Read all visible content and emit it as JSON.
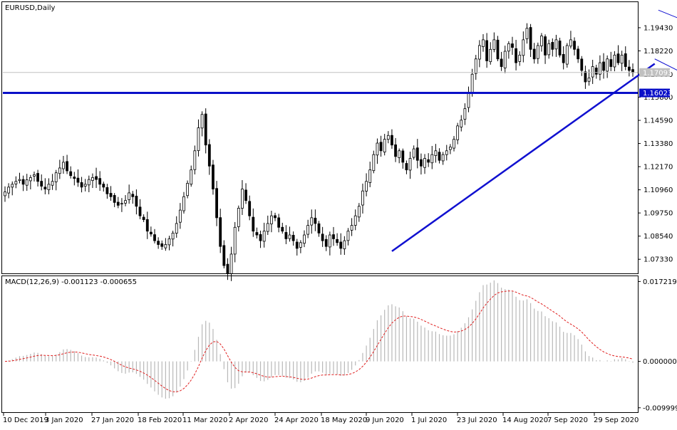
{
  "chart_data": [
    {
      "type": "candlestick",
      "title": "EURUSD,Daily",
      "ylim": [
        1.0663,
        1.2073
      ],
      "y_ticks": [
        "1.19430",
        "1.18220",
        "1.17000",
        "1.15800",
        "1.14590",
        "1.13380",
        "1.12170",
        "1.10960",
        "1.09750",
        "1.08540",
        "1.07330"
      ],
      "current_price_label": "1.17093",
      "current_price": 1.17093,
      "support_level_label": "1.16023",
      "support_level": 1.16023,
      "x_labels": [
        "10 Dec 2019",
        "3 Jan 2020",
        "27 Jan 2020",
        "18 Feb 2020",
        "11 Mar 2020",
        "2 Apr 2020",
        "24 Apr 2020",
        "18 May 2020",
        "9 Jun 2020",
        "1 Jul 2020",
        "23 Jul 2020",
        "14 Aug 2020",
        "7 Sep 2020",
        "29 Sep 2020"
      ],
      "closes": [
        1.1085,
        1.111,
        1.1125,
        1.114,
        1.115,
        1.1125,
        1.1148,
        1.116,
        1.1175,
        1.114,
        1.1115,
        1.11,
        1.1125,
        1.114,
        1.1185,
        1.121,
        1.124,
        1.1195,
        1.117,
        1.1155,
        1.1135,
        1.111,
        1.1125,
        1.115,
        1.116,
        1.115,
        1.1125,
        1.111,
        1.1075,
        1.106,
        1.103,
        1.1015,
        1.1025,
        1.104,
        1.108,
        1.106,
        1.101,
        1.096,
        1.094,
        1.088,
        1.0865,
        1.083,
        1.081,
        1.08,
        1.081,
        1.084,
        1.087,
        1.092,
        1.099,
        1.106,
        1.113,
        1.12,
        1.13,
        1.142,
        1.149,
        1.133,
        1.122,
        1.11,
        1.095,
        1.08,
        1.07,
        1.066,
        1.076,
        1.09,
        1.1,
        1.11,
        1.104,
        1.096,
        1.088,
        1.086,
        1.083,
        1.088,
        1.092,
        1.096,
        1.095,
        1.09,
        1.088,
        1.084,
        1.086,
        1.083,
        1.079,
        1.082,
        1.086,
        1.091,
        1.095,
        1.092,
        1.087,
        1.083,
        1.08,
        1.086,
        1.084,
        1.082,
        1.079,
        1.083,
        1.088,
        1.091,
        1.096,
        1.101,
        1.109,
        1.114,
        1.12,
        1.128,
        1.134,
        1.13,
        1.136,
        1.138,
        1.133,
        1.127,
        1.13,
        1.124,
        1.12,
        1.126,
        1.131,
        1.125,
        1.122,
        1.126,
        1.124,
        1.128,
        1.13,
        1.125,
        1.128,
        1.13,
        1.132,
        1.136,
        1.143,
        1.146,
        1.152,
        1.16,
        1.17,
        1.178,
        1.185,
        1.188,
        1.177,
        1.183,
        1.188,
        1.178,
        1.174,
        1.182,
        1.186,
        1.184,
        1.176,
        1.18,
        1.188,
        1.194,
        1.183,
        1.178,
        1.185,
        1.19,
        1.18,
        1.186,
        1.183,
        1.188,
        1.18,
        1.176,
        1.185,
        1.188,
        1.183,
        1.178,
        1.172,
        1.166,
        1.168,
        1.174,
        1.17,
        1.176,
        1.172,
        1.178,
        1.174,
        1.18,
        1.176,
        1.18,
        1.174,
        1.172,
        1.1709
      ],
      "macd_title": "MACD(12,26,9) -0.001123 -0.000655",
      "macd_ylim": [
        -0.0108,
        0.0182
      ],
      "macd_ticks": [
        "0.017219",
        "0.000000",
        "-0.009999"
      ],
      "macd_tick_values": [
        0.017219,
        0.0,
        -0.009999
      ]
    }
  ]
}
